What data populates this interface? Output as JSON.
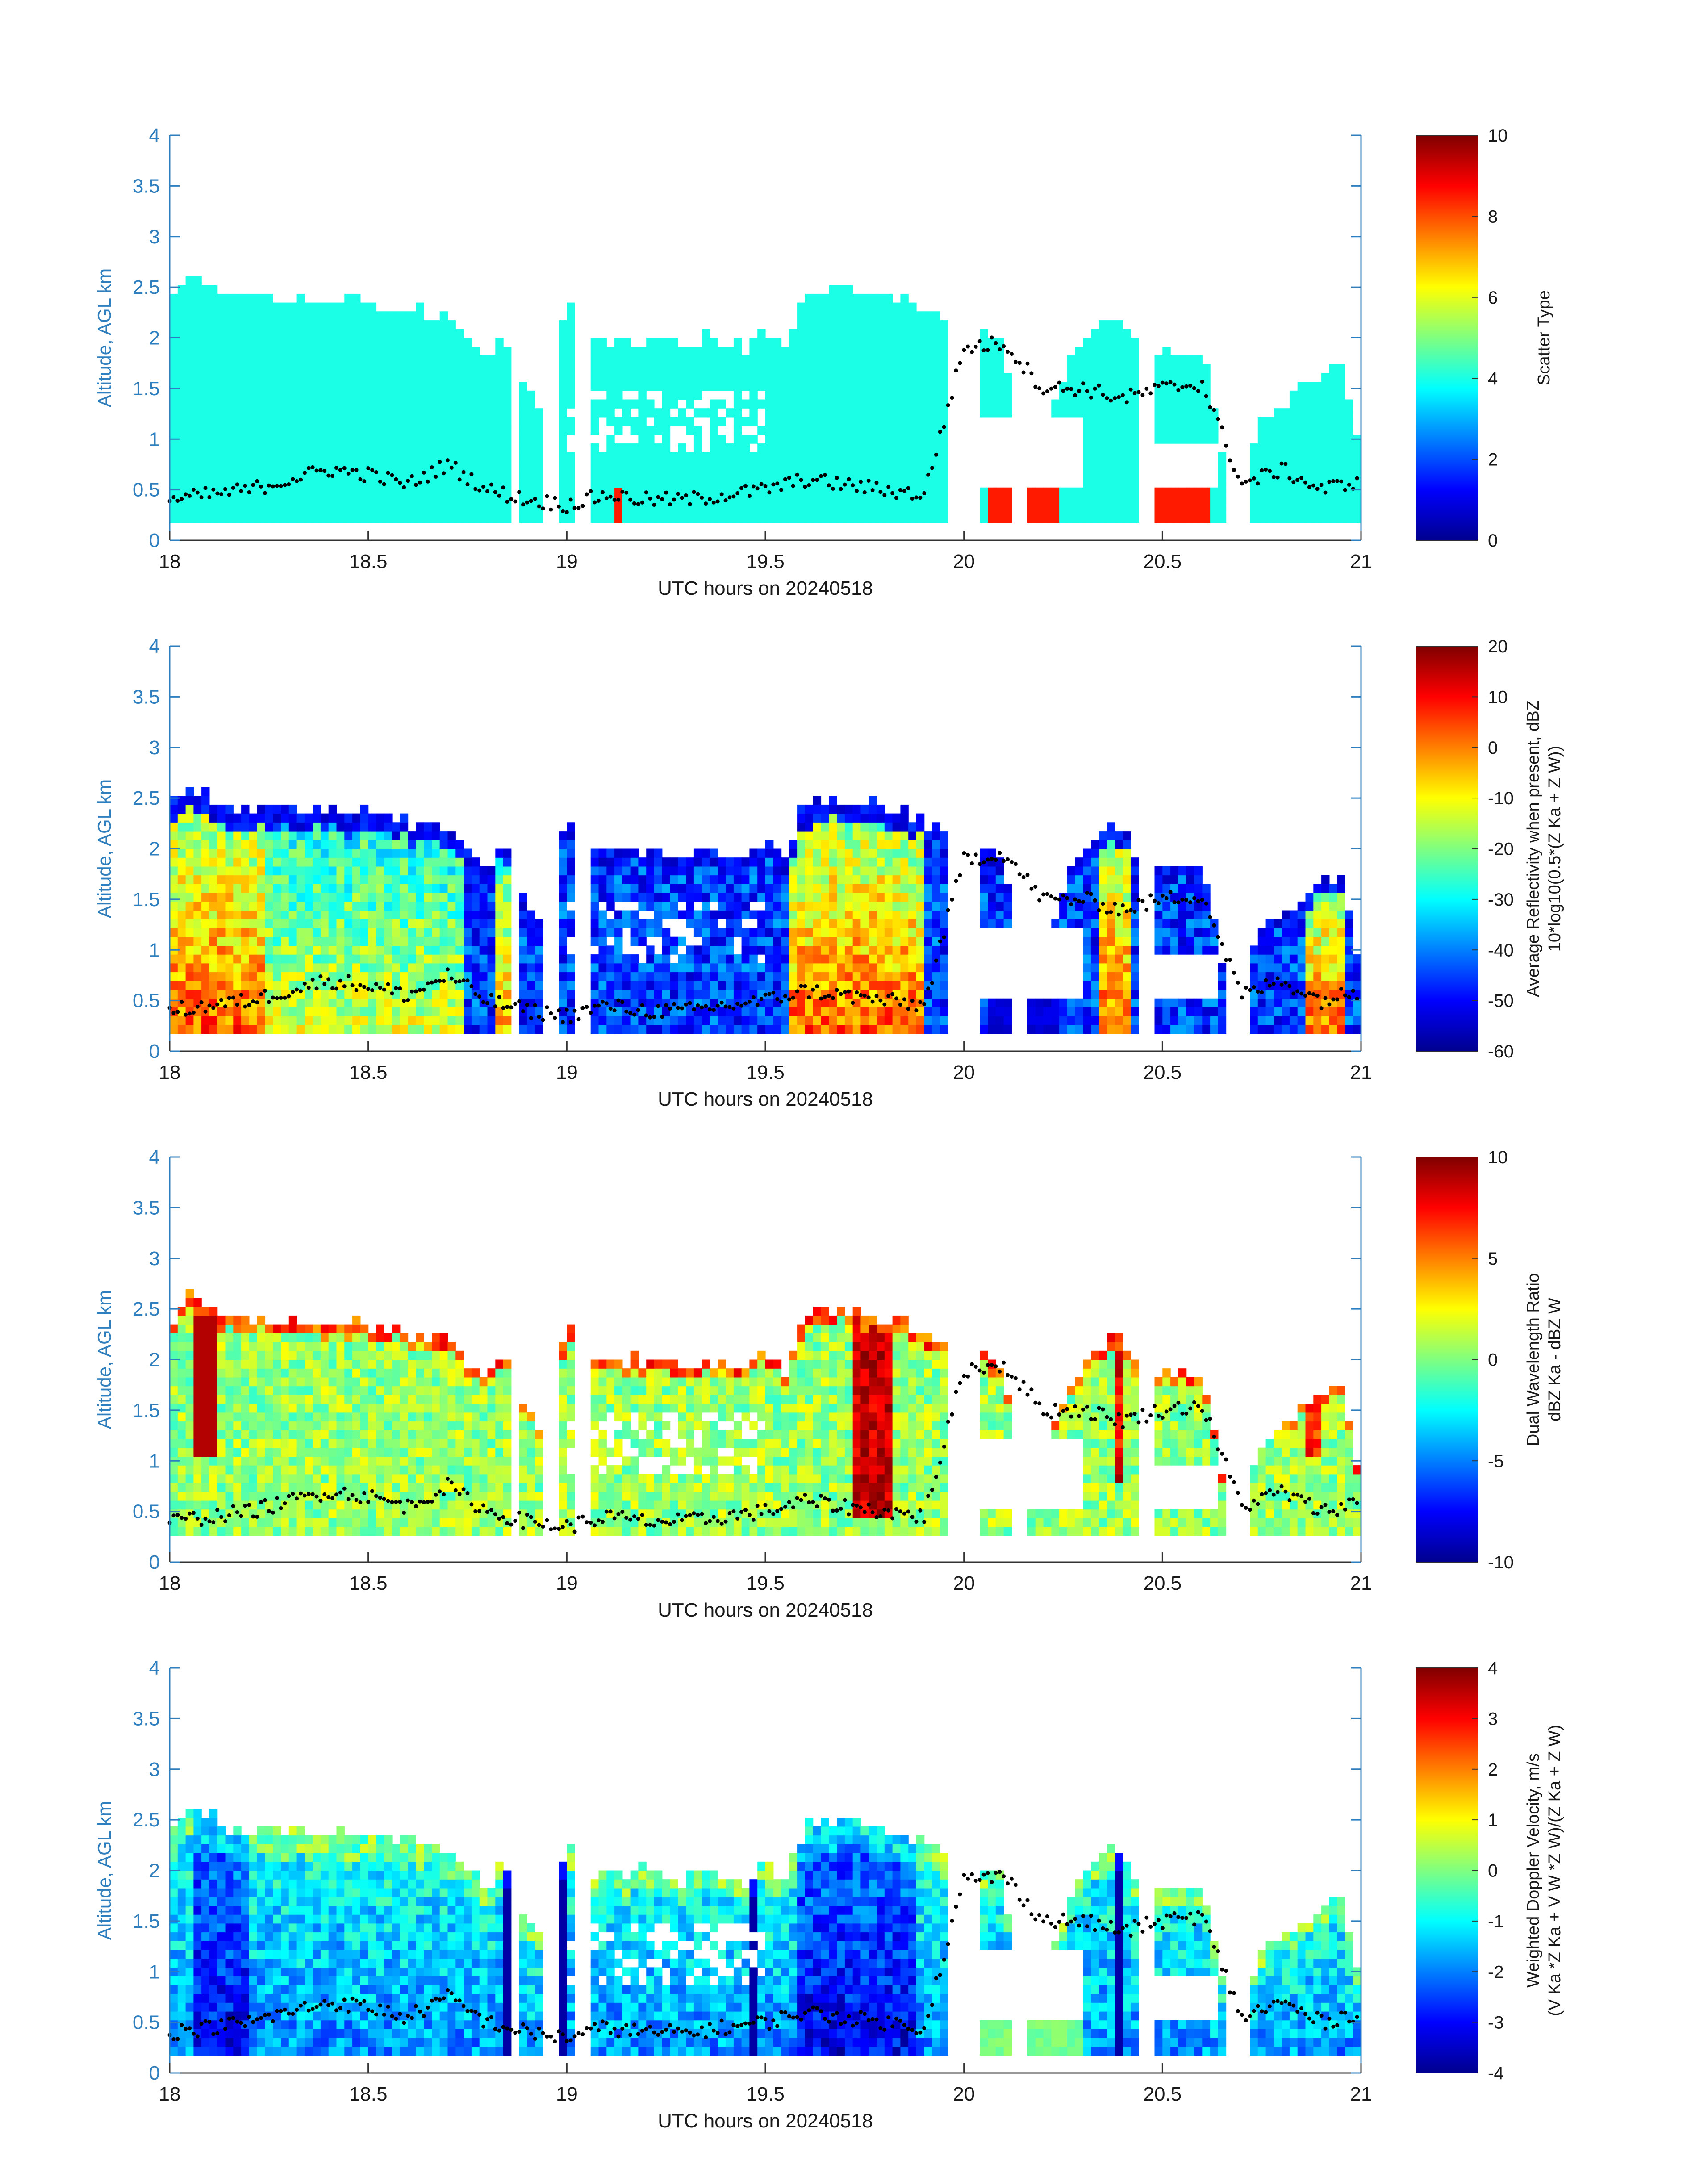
{
  "chart_data": [
    {
      "type": "heatmap",
      "panel": "scatter-type",
      "xlabel": "UTC hours on 20240518",
      "ylabel": "Altitude, AGL km",
      "xlim": [
        18,
        21
      ],
      "ylim": [
        0,
        4
      ],
      "xticks": [
        "18",
        "18.5",
        "19",
        "19.5",
        "20",
        "20.5",
        "21"
      ],
      "yticks": [
        "0",
        "0.5",
        "1",
        "1.5",
        "2",
        "2.5",
        "3",
        "3.5",
        "4"
      ],
      "colorbar": {
        "label_lines": [
          "Scatter Type"
        ],
        "range": [
          0,
          10
        ],
        "ticks": [
          "0",
          "2",
          "4",
          "6",
          "8",
          "10"
        ],
        "colormap": "jet"
      },
      "description_values": {
        "dominant_value": 4,
        "secondary_value": 8.5
      }
    },
    {
      "type": "heatmap",
      "panel": "reflectivity",
      "xlabel": "UTC hours on 20240518",
      "ylabel": "Altitude, AGL km",
      "xlim": [
        18,
        21
      ],
      "ylim": [
        0,
        4
      ],
      "xticks": [
        "18",
        "18.5",
        "19",
        "19.5",
        "20",
        "20.5",
        "21"
      ],
      "yticks": [
        "0",
        "0.5",
        "1",
        "1.5",
        "2",
        "2.5",
        "3",
        "3.5",
        "4"
      ],
      "colorbar": {
        "label_lines": [
          "Average Reflectivity when present, dBZ",
          "10*log10(0.5*(Z Ka + Z W))"
        ],
        "range": [
          -60,
          20
        ],
        "ticks": [
          "-60",
          "-50",
          "-40",
          "-30",
          "-20",
          "-10",
          "0",
          "10",
          "20"
        ],
        "colormap": "jet"
      }
    },
    {
      "type": "heatmap",
      "panel": "dwr",
      "xlabel": "UTC hours on 20240518",
      "ylabel": "Altitude, AGL km",
      "xlim": [
        18,
        21
      ],
      "ylim": [
        0,
        4
      ],
      "xticks": [
        "18",
        "18.5",
        "19",
        "19.5",
        "20",
        "20.5",
        "21"
      ],
      "yticks": [
        "0",
        "0.5",
        "1",
        "1.5",
        "2",
        "2.5",
        "3",
        "3.5",
        "4"
      ],
      "colorbar": {
        "label_lines": [
          "Dual Wavelength Ratio",
          "dBZ Ka - dBZ W"
        ],
        "range": [
          -10,
          10
        ],
        "ticks": [
          "-10",
          "-5",
          "0",
          "5",
          "10"
        ],
        "colormap": "jet"
      }
    },
    {
      "type": "heatmap",
      "panel": "doppler",
      "xlabel": "UTC hours on 20240518",
      "ylabel": "Altitude, AGL km",
      "xlim": [
        18,
        21
      ],
      "ylim": [
        0,
        4
      ],
      "xticks": [
        "18",
        "18.5",
        "19",
        "19.5",
        "20",
        "20.5",
        "21"
      ],
      "yticks": [
        "0",
        "0.5",
        "1",
        "1.5",
        "2",
        "2.5",
        "3",
        "3.5",
        "4"
      ],
      "colorbar": {
        "label_lines": [
          "Weighted Doppler Velocity, m/s",
          "(V Ka *Z Ka + V W *Z W)/(Z Ka + Z W)"
        ],
        "range": [
          -4,
          4
        ],
        "ticks": [
          "-4",
          "-3",
          "-2",
          "-1",
          "0",
          "1",
          "2",
          "3",
          "4"
        ],
        "colormap": "jet"
      }
    }
  ],
  "echo_profile": {
    "x": [
      18.0,
      18.05,
      18.1,
      18.15,
      18.25,
      18.5,
      18.7,
      18.8,
      18.84,
      18.88,
      18.95,
      19.0,
      19.05,
      19.1,
      19.2,
      19.3,
      19.35,
      19.45,
      19.5,
      19.55,
      19.6,
      19.7,
      19.8,
      19.9,
      19.95,
      20.0,
      20.1,
      20.15,
      20.25,
      20.3,
      20.38,
      20.45,
      20.5,
      20.6,
      20.67,
      20.75,
      20.85,
      20.95,
      21.0
    ],
    "top_km": [
      2.4,
      2.6,
      2.55,
      2.4,
      2.4,
      2.35,
      2.2,
      1.8,
      2.1,
      1.6,
      1.2,
      2.4,
      1.9,
      2.0,
      2.0,
      1.9,
      2.0,
      1.9,
      2.1,
      1.9,
      2.45,
      2.5,
      2.4,
      2.3,
      2.15,
      2.2,
      1.9,
      0.5,
      1.55,
      2.0,
      2.25,
      1.9,
      1.85,
      1.85,
      0.5,
      1.2,
      1.5,
      1.75,
      0.8
    ]
  },
  "cloud_base": {
    "x": [
      18.0,
      18.1,
      18.2,
      18.3,
      18.4,
      18.5,
      18.6,
      18.7,
      18.8,
      18.9,
      19.0,
      19.1,
      19.2,
      19.3,
      19.4,
      19.5,
      19.6,
      19.7,
      19.8,
      19.9,
      20.0,
      20.1,
      20.2,
      20.3,
      20.4,
      20.5,
      20.6,
      20.7,
      20.8,
      20.9,
      21.0
    ],
    "y_km": [
      0.4,
      0.45,
      0.5,
      0.6,
      0.7,
      0.65,
      0.55,
      0.75,
      0.5,
      0.4,
      0.35,
      0.45,
      0.4,
      0.4,
      0.45,
      0.5,
      0.6,
      0.55,
      0.5,
      0.45,
      1.9,
      1.95,
      1.5,
      1.5,
      1.4,
      1.5,
      1.55,
      0.55,
      0.7,
      0.5,
      0.6
    ]
  }
}
